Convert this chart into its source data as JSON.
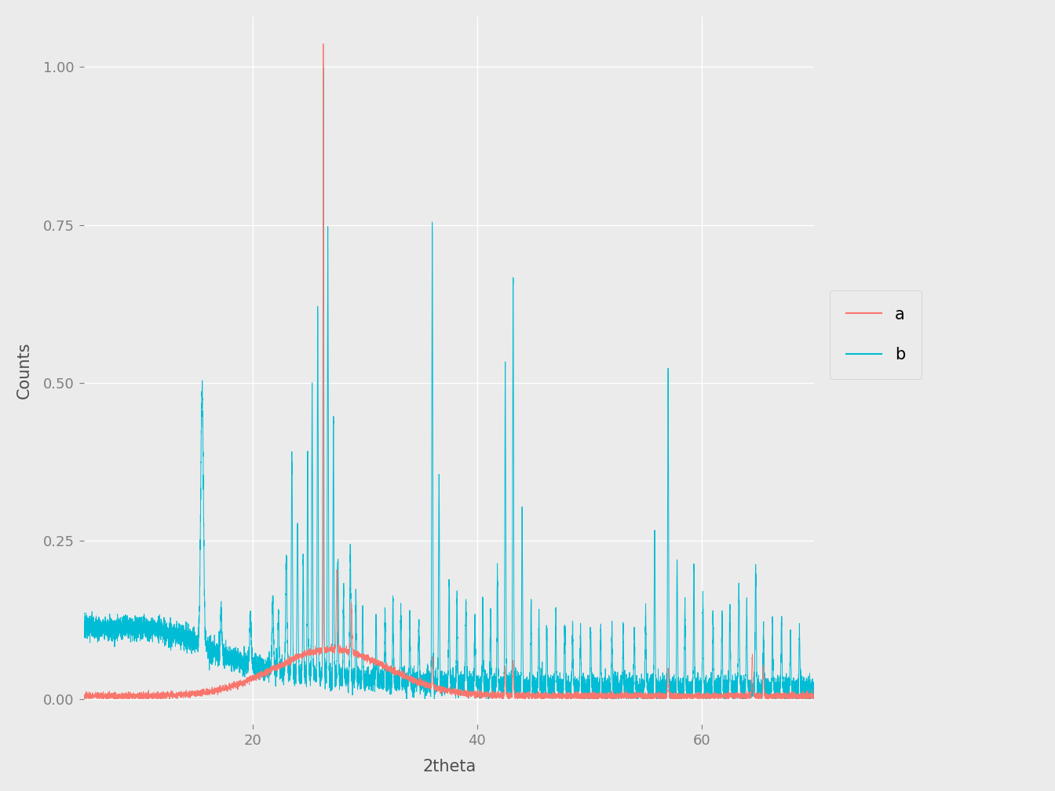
{
  "title": "",
  "xlabel": "2theta",
  "ylabel": "Counts",
  "xlim": [
    5,
    70
  ],
  "ylim": [
    -0.04,
    1.08
  ],
  "yticks": [
    0.0,
    0.25,
    0.5,
    0.75,
    1.0
  ],
  "xticks": [
    20,
    40,
    60
  ],
  "color_a": "#F8766D",
  "color_b": "#00BCD4",
  "background_color": "#EBEBEB",
  "panel_background": "#EBEBEB",
  "grid_color": "#FFFFFF",
  "legend_background": "#EBEBEB",
  "legend_labels": [
    "a",
    "b"
  ],
  "figsize": [
    13.44,
    10.08
  ],
  "dpi": 100,
  "tick_color": "#7F7F7F",
  "label_color": "#4D4D4D",
  "tick_label_color": "#7F7F7F"
}
